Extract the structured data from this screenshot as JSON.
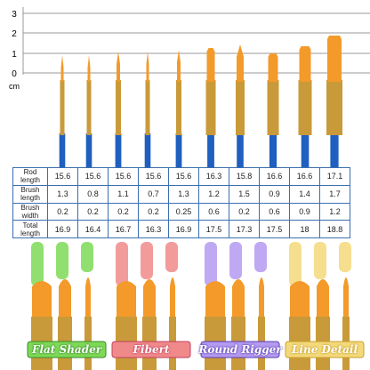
{
  "ruler": {
    "ticks": [
      "3",
      "2",
      "1",
      "0"
    ],
    "unit": "cm"
  },
  "table": {
    "rows": [
      [
        "Rod length",
        "15.6",
        "15.6",
        "15.6",
        "15.6",
        "15.6",
        "16.3",
        "15.8",
        "16.6",
        "16.6",
        "17.1"
      ],
      [
        "Brush length",
        "1.3",
        "0.8",
        "1.1",
        "0.7",
        "1.3",
        "1.2",
        "1.5",
        "0.9",
        "1.4",
        "1.7"
      ],
      [
        "Brush width",
        "0.2",
        "0.2",
        "0.2",
        "0.2",
        "0.25",
        "0.6",
        "0.2",
        "0.6",
        "0.9",
        "1.2"
      ],
      [
        "Total length",
        "16.9",
        "16.4",
        "16.7",
        "16.3",
        "16.9",
        "17.5",
        "17.3",
        "17.5",
        "18",
        "18.8"
      ]
    ]
  },
  "categories": [
    "Flat Shader",
    "Fibert",
    "Round Rigger",
    "Line Detail"
  ]
}
